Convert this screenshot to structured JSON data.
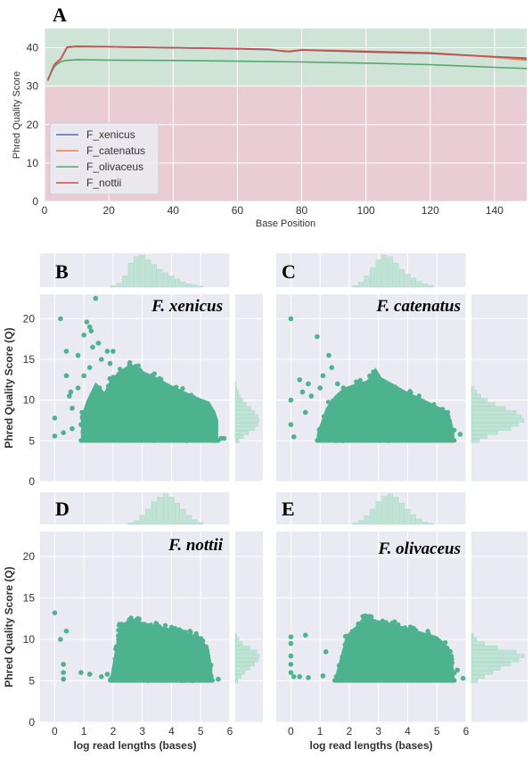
{
  "chart_data": [
    {
      "type": "line",
      "panel": "A",
      "xlabel": "Base Position",
      "ylabel": "Phred Quality Score",
      "xlim": [
        0,
        150
      ],
      "ylim": [
        0,
        45
      ],
      "xticks": [
        0,
        20,
        40,
        60,
        80,
        100,
        120,
        140
      ],
      "yticks": [
        0,
        10,
        20,
        30,
        40
      ],
      "background_bands": [
        {
          "from": 0,
          "to": 30,
          "color": "#eacdd4"
        },
        {
          "from": 30,
          "to": 45,
          "color": "#cfe3d7"
        }
      ],
      "legend_position": "lower-left",
      "grid": true,
      "series": [
        {
          "name": "F_xenicus",
          "color": "#4c72b0",
          "x": [
            1,
            2,
            3,
            4,
            5,
            6,
            7,
            10,
            20,
            40,
            60,
            70,
            73,
            76,
            80,
            100,
            120,
            140,
            150
          ],
          "y": [
            31.5,
            33.5,
            35.5,
            36.3,
            37.0,
            38.5,
            40.1,
            40.3,
            40.2,
            40.0,
            39.7,
            39.5,
            39.2,
            39.0,
            39.4,
            38.9,
            38.5,
            37.6,
            37.1
          ]
        },
        {
          "name": "F_catenatus",
          "color": "#dd8452",
          "x": [
            1,
            2,
            3,
            4,
            5,
            6,
            7,
            10,
            20,
            40,
            60,
            70,
            73,
            76,
            80,
            100,
            120,
            140,
            150
          ],
          "y": [
            31.4,
            33.4,
            35.4,
            36.2,
            36.9,
            38.4,
            40.0,
            40.3,
            40.2,
            40.0,
            39.8,
            39.6,
            39.3,
            39.1,
            39.5,
            39.1,
            38.7,
            37.5,
            36.8
          ]
        },
        {
          "name": "F_olivaceus",
          "color": "#55a868",
          "x": [
            1,
            2,
            3,
            4,
            5,
            6,
            8,
            10,
            20,
            40,
            60,
            80,
            100,
            120,
            140,
            150
          ],
          "y": [
            31.8,
            33.5,
            35.0,
            35.8,
            36.3,
            36.6,
            36.8,
            36.9,
            36.8,
            36.7,
            36.5,
            36.3,
            36.0,
            35.6,
            34.9,
            34.6
          ]
        },
        {
          "name": "F_nottii",
          "color": "#c44e52",
          "x": [
            1,
            2,
            3,
            4,
            5,
            6,
            7,
            10,
            20,
            40,
            60,
            70,
            73,
            76,
            80,
            100,
            120,
            140,
            150
          ],
          "y": [
            31.6,
            33.6,
            35.6,
            36.4,
            37.1,
            38.6,
            40.2,
            40.4,
            40.3,
            40.0,
            39.8,
            39.6,
            39.2,
            39.0,
            39.4,
            39.0,
            38.6,
            37.7,
            37.3
          ]
        }
      ]
    },
    {
      "type": "scatter",
      "panel": "B",
      "species": "F. xenicus",
      "xlabel": "",
      "ylabel": "Phred Quality Score (Q)",
      "xlim": [
        -0.5,
        6
      ],
      "ylim": [
        0,
        23
      ],
      "yticks": [
        0,
        5,
        10,
        15,
        20
      ],
      "color": "#4cb38e",
      "outliers": [
        [
          0,
          7.8
        ],
        [
          0,
          5.6
        ],
        [
          0.2,
          20
        ],
        [
          0.3,
          6
        ],
        [
          0.4,
          16
        ],
        [
          0.4,
          13
        ],
        [
          0.55,
          11
        ],
        [
          0.6,
          9
        ],
        [
          0.6,
          6.5
        ],
        [
          0.8,
          15.5
        ],
        [
          0.9,
          7
        ],
        [
          1.0,
          18
        ],
        [
          1.1,
          19.6
        ],
        [
          1.2,
          19
        ],
        [
          1.25,
          18.5
        ],
        [
          1.3,
          16.5
        ],
        [
          1.4,
          22.5
        ],
        [
          1.5,
          17
        ],
        [
          1.6,
          15
        ],
        [
          1.8,
          16
        ],
        [
          1.9,
          14.5
        ],
        [
          2.0,
          16
        ],
        [
          1.2,
          14
        ],
        [
          1.0,
          13
        ],
        [
          0.8,
          11.5
        ],
        [
          0.5,
          10.5
        ],
        [
          5.7,
          5.3
        ],
        [
          5.8,
          5.3
        ]
      ],
      "density_envelope": [
        [
          0.9,
          8
        ],
        [
          1.1,
          10
        ],
        [
          1.4,
          12.2
        ],
        [
          1.7,
          11
        ],
        [
          1.9,
          12.5
        ],
        [
          2.2,
          13.5
        ],
        [
          2.6,
          14.5
        ],
        [
          3.0,
          13.6
        ],
        [
          3.5,
          12.8
        ],
        [
          4.0,
          11.8
        ],
        [
          4.5,
          11.0
        ],
        [
          5.0,
          10.2
        ],
        [
          5.3,
          9.8
        ],
        [
          5.5,
          8.6
        ],
        [
          5.6,
          7.5
        ],
        [
          5.6,
          5.0
        ],
        [
          0.9,
          5.0
        ]
      ],
      "top_histogram": [
        [
          2.0,
          0.05
        ],
        [
          2.2,
          0.12
        ],
        [
          2.4,
          0.35
        ],
        [
          2.6,
          0.75
        ],
        [
          2.8,
          0.95
        ],
        [
          3.0,
          1.0
        ],
        [
          3.2,
          0.85
        ],
        [
          3.4,
          0.7
        ],
        [
          3.6,
          0.55
        ],
        [
          3.8,
          0.45
        ],
        [
          4.0,
          0.35
        ],
        [
          4.2,
          0.25
        ],
        [
          4.4,
          0.16
        ],
        [
          4.6,
          0.1
        ],
        [
          4.8,
          0.06
        ],
        [
          5.0,
          0.03
        ]
      ],
      "right_histogram": [
        [
          5,
          0.15
        ],
        [
          5.5,
          0.35
        ],
        [
          6,
          0.55
        ],
        [
          6.5,
          0.8
        ],
        [
          7,
          0.95
        ],
        [
          7.5,
          1.0
        ],
        [
          8,
          0.95
        ],
        [
          8.5,
          0.8
        ],
        [
          9,
          0.65
        ],
        [
          9.5,
          0.45
        ],
        [
          10,
          0.3
        ],
        [
          10.5,
          0.2
        ],
        [
          11,
          0.12
        ],
        [
          11.5,
          0.06
        ],
        [
          12,
          0.03
        ]
      ]
    },
    {
      "type": "scatter",
      "panel": "C",
      "species": "F. catenatus",
      "xlabel": "",
      "ylabel": "",
      "xlim": [
        -0.5,
        6
      ],
      "ylim": [
        0,
        23
      ],
      "color": "#4cb38e",
      "outliers": [
        [
          0,
          20
        ],
        [
          0,
          10
        ],
        [
          0,
          7
        ],
        [
          0.1,
          5.5
        ],
        [
          0.3,
          12.5
        ],
        [
          0.4,
          11
        ],
        [
          0.5,
          8.5
        ],
        [
          0.6,
          12
        ],
        [
          0.7,
          10.5
        ],
        [
          0.9,
          17.8
        ],
        [
          1.0,
          11.5
        ],
        [
          1.1,
          13
        ],
        [
          1.3,
          15.5
        ],
        [
          1.4,
          14
        ],
        [
          1.6,
          12
        ],
        [
          1.8,
          11.5
        ],
        [
          2.0,
          11
        ],
        [
          5.8,
          5.8
        ]
      ],
      "density_envelope": [
        [
          0.9,
          6
        ],
        [
          1.2,
          9
        ],
        [
          1.5,
          10.5
        ],
        [
          1.8,
          11.5
        ],
        [
          2.2,
          12
        ],
        [
          2.6,
          12.4
        ],
        [
          2.9,
          14.0
        ],
        [
          3.1,
          12.8
        ],
        [
          3.5,
          12.0
        ],
        [
          4.0,
          11.0
        ],
        [
          4.5,
          10.2
        ],
        [
          5.0,
          9.3
        ],
        [
          5.3,
          8.8
        ],
        [
          5.5,
          7.6
        ],
        [
          5.6,
          6.0
        ],
        [
          5.6,
          5.0
        ],
        [
          0.9,
          5.0
        ]
      ],
      "top_histogram": [
        [
          2.2,
          0.05
        ],
        [
          2.4,
          0.15
        ],
        [
          2.6,
          0.35
        ],
        [
          2.8,
          0.6
        ],
        [
          3.0,
          0.85
        ],
        [
          3.2,
          1.0
        ],
        [
          3.4,
          0.95
        ],
        [
          3.6,
          0.75
        ],
        [
          3.8,
          0.55
        ],
        [
          4.0,
          0.4
        ],
        [
          4.2,
          0.28
        ],
        [
          4.4,
          0.18
        ],
        [
          4.6,
          0.1
        ],
        [
          4.8,
          0.05
        ]
      ],
      "right_histogram": [
        [
          5,
          0.15
        ],
        [
          5.5,
          0.3
        ],
        [
          6,
          0.5
        ],
        [
          6.5,
          0.75
        ],
        [
          7,
          0.9
        ],
        [
          7.5,
          1.0
        ],
        [
          8,
          0.95
        ],
        [
          8.5,
          0.85
        ],
        [
          9,
          0.65
        ],
        [
          9.5,
          0.45
        ],
        [
          10,
          0.3
        ],
        [
          10.5,
          0.18
        ],
        [
          11,
          0.1
        ],
        [
          11.5,
          0.05
        ]
      ]
    },
    {
      "type": "scatter",
      "panel": "D",
      "species": "F. nottii",
      "xlabel": "log read lengths (bases)",
      "ylabel": "Phred Quality Score (Q)",
      "xlim": [
        -0.5,
        6
      ],
      "ylim": [
        0,
        23
      ],
      "xticks": [
        0,
        1,
        2,
        3,
        4,
        5,
        6
      ],
      "yticks": [
        0,
        5,
        10,
        15,
        20
      ],
      "color": "#4cb38e",
      "outliers": [
        [
          0,
          13.2
        ],
        [
          0.2,
          10
        ],
        [
          0.3,
          7
        ],
        [
          0.3,
          6
        ],
        [
          0.3,
          5.2
        ],
        [
          0.4,
          11.0
        ],
        [
          0.9,
          6
        ],
        [
          1.2,
          5.8
        ],
        [
          1.6,
          5.5
        ],
        [
          1.8,
          5.8
        ],
        [
          5.0,
          5.5
        ],
        [
          5.6,
          5.2
        ]
      ],
      "density_envelope": [
        [
          1.9,
          5.3
        ],
        [
          2.2,
          11.5
        ],
        [
          2.6,
          12.6
        ],
        [
          3.0,
          12.1
        ],
        [
          3.5,
          11.7
        ],
        [
          4.0,
          11.3
        ],
        [
          4.5,
          10.8
        ],
        [
          4.9,
          10.5
        ],
        [
          5.1,
          9.8
        ],
        [
          5.3,
          8.5
        ],
        [
          5.4,
          6.5
        ],
        [
          5.4,
          5.0
        ],
        [
          1.9,
          5.0
        ]
      ],
      "top_histogram": [
        [
          2.6,
          0.05
        ],
        [
          2.8,
          0.12
        ],
        [
          3.0,
          0.3
        ],
        [
          3.2,
          0.5
        ],
        [
          3.4,
          0.75
        ],
        [
          3.6,
          0.9
        ],
        [
          3.8,
          1.0
        ],
        [
          4.0,
          0.9
        ],
        [
          4.2,
          0.7
        ],
        [
          4.4,
          0.5
        ],
        [
          4.6,
          0.3
        ],
        [
          4.8,
          0.15
        ],
        [
          5.0,
          0.06
        ]
      ],
      "right_histogram": [
        [
          5,
          0.1
        ],
        [
          5.5,
          0.25
        ],
        [
          6,
          0.4
        ],
        [
          6.5,
          0.6
        ],
        [
          7,
          0.8
        ],
        [
          7.5,
          0.95
        ],
        [
          8,
          1.0
        ],
        [
          8.5,
          0.9
        ],
        [
          9,
          0.6
        ],
        [
          9.5,
          0.3
        ],
        [
          10,
          0.15
        ],
        [
          10.5,
          0.06
        ]
      ]
    },
    {
      "type": "scatter",
      "panel": "E",
      "species": "F. olivaceus",
      "xlabel": "log read lengths (bases)",
      "ylabel": "",
      "xlim": [
        -0.5,
        6
      ],
      "ylim": [
        0,
        23
      ],
      "xticks": [
        0,
        1,
        2,
        3,
        4,
        5,
        6
      ],
      "color": "#4cb38e",
      "outliers": [
        [
          0,
          10.3
        ],
        [
          0,
          9.5
        ],
        [
          0,
          8
        ],
        [
          0,
          7
        ],
        [
          0,
          6
        ],
        [
          0.1,
          5.5
        ],
        [
          0.3,
          5.5
        ],
        [
          0.5,
          10.5
        ],
        [
          0.6,
          5.4
        ],
        [
          1.1,
          5.6
        ],
        [
          1.2,
          8.5
        ],
        [
          5.7,
          6.3
        ],
        [
          5.9,
          5.3
        ]
      ],
      "density_envelope": [
        [
          1.5,
          5.3
        ],
        [
          1.9,
          10.5
        ],
        [
          2.2,
          11.5
        ],
        [
          2.5,
          12.8
        ],
        [
          3.0,
          12.3
        ],
        [
          3.5,
          11.9
        ],
        [
          4.0,
          11.4
        ],
        [
          4.5,
          10.9
        ],
        [
          5.0,
          10.4
        ],
        [
          5.3,
          9.5
        ],
        [
          5.5,
          8.0
        ],
        [
          5.6,
          6.0
        ],
        [
          5.6,
          5.0
        ],
        [
          1.5,
          5.0
        ]
      ],
      "top_histogram": [
        [
          2.2,
          0.05
        ],
        [
          2.4,
          0.12
        ],
        [
          2.6,
          0.28
        ],
        [
          2.8,
          0.5
        ],
        [
          3.0,
          0.75
        ],
        [
          3.2,
          0.92
        ],
        [
          3.4,
          1.0
        ],
        [
          3.6,
          0.9
        ],
        [
          3.8,
          0.7
        ],
        [
          4.0,
          0.5
        ],
        [
          4.2,
          0.32
        ],
        [
          4.4,
          0.18
        ],
        [
          4.6,
          0.08
        ],
        [
          4.8,
          0.03
        ]
      ],
      "right_histogram": [
        [
          5,
          0.12
        ],
        [
          5.5,
          0.25
        ],
        [
          6,
          0.4
        ],
        [
          6.5,
          0.55
        ],
        [
          7,
          0.75
        ],
        [
          7.5,
          0.9
        ],
        [
          8,
          1.0
        ],
        [
          8.5,
          0.85
        ],
        [
          9,
          0.5
        ],
        [
          9.5,
          0.25
        ],
        [
          10,
          0.1
        ],
        [
          10.5,
          0.04
        ]
      ]
    }
  ]
}
